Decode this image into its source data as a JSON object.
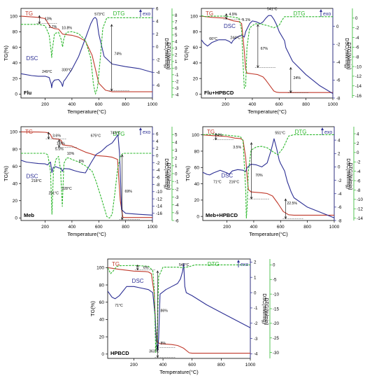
{
  "colors": {
    "tg": "#c0392b",
    "dtg": "#2eb82e",
    "dsc": "#2c2f94",
    "axis": "#000000",
    "annot": "#000000"
  },
  "labels": {
    "xlabel": "Temperature(°C)",
    "ylabel_tg": "TG(%)",
    "ylabel_dsc": "DSC(mW/mg)",
    "ylabel_dtg": "DTG(%/min)",
    "legend_tg": "TG",
    "legend_dtg": "DTG",
    "legend_dsc": "DSC",
    "legend_exo": "exo"
  },
  "chart_data": [
    {
      "type": "line",
      "name": "Flu",
      "xlim": [
        20,
        1000
      ],
      "xticks": [
        200,
        400,
        600,
        800,
        1000
      ],
      "tg": {
        "ylim": [
          -5,
          110
        ],
        "ticks": [
          0,
          20,
          40,
          60,
          80,
          100
        ],
        "x": [
          20,
          150,
          200,
          240,
          270,
          300,
          330,
          350,
          400,
          450,
          500,
          550,
          600,
          650,
          700,
          1000
        ],
        "y": [
          100,
          98.5,
          97,
          86,
          84,
          83.5,
          77,
          76.5,
          75.5,
          73,
          68,
          50,
          14,
          5,
          3,
          3
        ]
      },
      "dsc": {
        "ylim": [
          -8,
          6
        ],
        "ticks": [
          -6,
          -4,
          -2,
          0,
          2,
          4,
          6
        ],
        "x": [
          20,
          100,
          150,
          200,
          230,
          245,
          249,
          255,
          270,
          300,
          320,
          330,
          338,
          350,
          400,
          450,
          500,
          540,
          560,
          573,
          585,
          600,
          640,
          700,
          800,
          900,
          1000
        ],
        "y": [
          -4.2,
          -4.5,
          -4.6,
          -4.6,
          -4.8,
          -5.8,
          -6.4,
          -5.6,
          -5.2,
          -5.1,
          -5.6,
          -6.2,
          -5.4,
          -5.1,
          -3.5,
          -1.5,
          1.3,
          3.6,
          4.4,
          4.6,
          4.3,
          2,
          -1.5,
          -2.7,
          -3.1,
          -3.4,
          -4
        ]
      },
      "dtg": {
        "ylim": [
          -4.5,
          9
        ],
        "ticks": [
          -4,
          -3,
          -2,
          -1,
          0,
          1,
          2,
          3,
          4,
          5,
          6,
          7,
          8
        ],
        "x": [
          20,
          150,
          200,
          230,
          245,
          249,
          255,
          270,
          300,
          320,
          330,
          340,
          360,
          400,
          450,
          500,
          540,
          560,
          575,
          590,
          610,
          630,
          660,
          1000
        ],
        "y": [
          6.6,
          6.6,
          6.4,
          5,
          2.5,
          1.6,
          3,
          5.2,
          5.4,
          4.3,
          3.2,
          4.5,
          5.4,
          5.5,
          5.2,
          4.2,
          1.5,
          -2.4,
          -3.9,
          -3,
          1.2,
          6,
          7.6,
          7.6
        ]
      },
      "labels": [
        "249°C",
        "330°C",
        "573°C",
        "13%",
        "2.7%",
        "10.8%",
        "74%"
      ]
    },
    {
      "type": "line",
      "name": "Flu+HPBCD",
      "xlim": [
        20,
        1000
      ],
      "xticks": [
        200,
        400,
        600,
        800,
        1000
      ],
      "tg": {
        "ylim": [
          -5,
          110
        ],
        "ticks": [
          0,
          20,
          40,
          60,
          80,
          100
        ],
        "x": [
          20,
          100,
          200,
          240,
          260,
          300,
          320,
          340,
          350,
          360,
          380,
          400,
          440,
          480,
          500,
          560,
          580,
          600,
          1000
        ],
        "y": [
          100,
          98.5,
          97.5,
          95,
          94,
          93,
          90.5,
          55,
          32,
          27,
          26.5,
          26,
          25,
          22,
          18,
          4,
          2.5,
          2,
          2
        ]
      },
      "dsc": {
        "ylim": [
          -8,
          2
        ],
        "ticks": [
          -8,
          -6,
          -4,
          -2,
          0
        ],
        "x": [
          20,
          40,
          66,
          100,
          150,
          200,
          230,
          244,
          255,
          270,
          300,
          320,
          330,
          340,
          350,
          380,
          400,
          430,
          460,
          480,
          500,
          520,
          541,
          560,
          580,
          600,
          640,
          650,
          700,
          800,
          900,
          1000
        ],
        "y": [
          -1.5,
          -1.9,
          -2.2,
          -1.8,
          -1.5,
          -1.5,
          -1.7,
          -1.9,
          -1.6,
          -1.4,
          -1.1,
          -1.0,
          -1.1,
          -1.2,
          -0.6,
          0.3,
          0.6,
          0.5,
          0.3,
          0.5,
          0.9,
          1.2,
          1.2,
          0.8,
          0.2,
          -0.6,
          -1.6,
          -2.4,
          -3.9,
          -5.4,
          -6.6,
          -7.5
        ]
      },
      "dtg": {
        "ylim": [
          -16.5,
          2
        ],
        "ticks": [
          -16,
          -14,
          -12,
          -10,
          -8,
          -6,
          -4,
          -2,
          0
        ],
        "x": [
          20,
          50,
          100,
          200,
          260,
          300,
          320,
          330,
          340,
          350,
          360,
          380,
          420,
          460,
          520,
          560,
          600,
          620,
          640,
          1000
        ],
        "y": [
          0.5,
          0.3,
          0.4,
          0.4,
          0.2,
          0,
          -2.5,
          -9,
          -14.5,
          -14,
          -6,
          -2,
          -1.2,
          -1.2,
          -1.6,
          -2.0,
          -1.5,
          -0.5,
          0.3,
          0.3
        ]
      },
      "labels": [
        "66°C",
        "244°C",
        "541°C",
        "4.9%",
        "5.1%",
        "67%",
        "24%"
      ]
    },
    {
      "type": "line",
      "name": "Meb",
      "xlim": [
        20,
        1000
      ],
      "xticks": [
        200,
        400,
        600,
        800,
        1000
      ],
      "tg": {
        "ylim": [
          -3,
          106
        ],
        "ticks": [
          0,
          20,
          40,
          60,
          80,
          100
        ],
        "x": [
          20,
          150,
          200,
          220,
          240,
          250,
          260,
          300,
          320,
          330,
          350,
          400,
          450,
          500,
          550,
          580,
          620,
          660,
          700,
          740,
          760,
          780,
          1000
        ],
        "y": [
          100,
          99.8,
          99.5,
          99,
          97,
          93.5,
          92,
          91.5,
          90,
          85,
          84.5,
          83.5,
          80,
          76.5,
          74,
          72.5,
          72,
          71.5,
          70.5,
          68,
          20,
          0.5,
          0.5
        ]
      },
      "dsc": {
        "ylim": [
          -18,
          8
        ],
        "ticks": [
          -16,
          -14,
          -12,
          -10,
          -8,
          -6,
          -4,
          -2,
          0,
          2,
          4,
          6
        ],
        "x": [
          20,
          60,
          100,
          150,
          200,
          218,
          230,
          240,
          251,
          260,
          280,
          300,
          320,
          328,
          340,
          380,
          420,
          460,
          500,
          540,
          580,
          620,
          660,
          700,
          720,
          743,
          755,
          770,
          800,
          900,
          1000
        ],
        "y": [
          -1.3,
          -1.8,
          -2.0,
          -2.2,
          -2.3,
          -2.6,
          -2.1,
          -1.8,
          -4.7,
          -3.3,
          -3.1,
          -3.4,
          -3.5,
          -4.4,
          -3.6,
          -3.7,
          -4.2,
          -4.6,
          -4.8,
          -2.1,
          0.3,
          1.2,
          2.6,
          3.5,
          4.5,
          5.8,
          0.5,
          -15,
          -16,
          -16.3,
          -16.5
        ]
      },
      "dtg": {
        "ylim": [
          -6,
          6
        ],
        "ticks": [
          -6,
          -5,
          -4,
          -3,
          -2,
          -1,
          0,
          1,
          2,
          3,
          4,
          5
        ],
        "x": [
          20,
          100,
          200,
          220,
          240,
          251,
          262,
          280,
          300,
          315,
          328,
          340,
          360,
          380,
          400,
          450,
          500,
          550,
          580,
          620,
          660,
          680,
          700,
          720,
          740,
          760,
          780,
          1000
        ],
        "y": [
          2.6,
          2.6,
          2.6,
          2.4,
          0.3,
          -5.2,
          0.2,
          1.8,
          2.2,
          0.5,
          -4.2,
          1.3,
          2.0,
          2.0,
          1.8,
          1.5,
          1.0,
          0.3,
          -1.0,
          -3.2,
          -5.5,
          -5.7,
          -5.2,
          -2.5,
          0.5,
          2.2,
          2.6,
          2.6
        ]
      },
      "labels": [
        "218°C",
        "251°C",
        "328°C",
        "675°C",
        "743°C",
        "3.6%",
        "1.8%",
        "5.5%",
        "10%",
        "8%",
        "69%"
      ]
    },
    {
      "type": "line",
      "name": "Meb+HPBCD",
      "xlim": [
        20,
        1000
      ],
      "xticks": [
        200,
        400,
        600,
        800,
        1000
      ],
      "tg": {
        "ylim": [
          -5,
          110
        ],
        "ticks": [
          0,
          20,
          40,
          60,
          80,
          100
        ],
        "x": [
          20,
          100,
          200,
          260,
          300,
          320,
          340,
          350,
          360,
          380,
          420,
          460,
          500,
          540,
          580,
          620,
          660,
          700,
          1000
        ],
        "y": [
          100,
          99,
          98,
          96,
          95.5,
          93.5,
          72,
          50,
          33,
          30,
          29.5,
          29,
          28,
          25,
          16,
          6,
          2,
          1.5,
          1.5
        ]
      },
      "dsc": {
        "ylim": [
          -8,
          6
        ],
        "ticks": [
          -8,
          -6,
          -4,
          -2,
          0,
          2,
          4
        ],
        "x": [
          20,
          50,
          71,
          100,
          150,
          200,
          216,
          240,
          280,
          320,
          340,
          350,
          380,
          420,
          460,
          500,
          530,
          551,
          570,
          590,
          600,
          630,
          650,
          680,
          700,
          800,
          900,
          1000
        ],
        "y": [
          -0.8,
          -1.1,
          -1.2,
          -0.9,
          -0.5,
          -0.9,
          -1.1,
          -0.6,
          -0.4,
          -0.5,
          -0.7,
          -0.1,
          0.4,
          0.3,
          0.0,
          0.6,
          2.5,
          4.2,
          2.8,
          1.0,
          0.5,
          -0.6,
          -2.2,
          -3.8,
          -4.6,
          -6.0,
          -6.8,
          -7.6
        ]
      },
      "dtg": {
        "ylim": [
          -14.5,
          5.5
        ],
        "ticks": [
          -14,
          -12,
          -10,
          -8,
          -6,
          -4,
          -2,
          0,
          2,
          4
        ],
        "x": [
          20,
          100,
          200,
          260,
          300,
          320,
          340,
          345,
          350,
          360,
          380,
          420,
          460,
          500,
          540,
          580,
          620,
          660,
          700,
          1000
        ],
        "y": [
          3.8,
          3.9,
          3.7,
          3.5,
          3.4,
          2.5,
          -8,
          -14,
          -12,
          -4,
          0.5,
          1.2,
          1.3,
          1.0,
          0.2,
          -0.5,
          1.0,
          3.5,
          3.8,
          3.8
        ]
      },
      "labels": [
        "71°C",
        "216°C",
        "551°C",
        "4%",
        "3.5%",
        "70%",
        "22.5%"
      ]
    },
    {
      "type": "line",
      "name": "HPBCD",
      "xlim": [
        20,
        1000
      ],
      "xticks": [
        200,
        400,
        600,
        800,
        1000
      ],
      "tg": {
        "ylim": [
          -5,
          110
        ],
        "ticks": [
          0,
          20,
          40,
          60,
          80,
          100
        ],
        "x": [
          20,
          100,
          200,
          280,
          300,
          320,
          340,
          350,
          360,
          380,
          420,
          460,
          500,
          540,
          580,
          600,
          1000
        ],
        "y": [
          100,
          98,
          96,
          95.5,
          95,
          93,
          70,
          30,
          14,
          12,
          11.5,
          11,
          10,
          7,
          1.5,
          1,
          1
        ]
      },
      "dsc": {
        "ylim": [
          -4.3,
          2.2
        ],
        "ticks": [
          -4,
          -3,
          -2,
          -1,
          0,
          1,
          2
        ],
        "x": [
          20,
          50,
          71,
          100,
          150,
          200,
          250,
          300,
          330,
          345,
          355,
          363,
          370,
          380,
          420,
          460,
          500,
          520,
          535,
          542,
          550,
          560,
          600,
          700,
          800,
          900,
          1000
        ],
        "y": [
          0.1,
          -0.3,
          -0.4,
          -0.2,
          0.4,
          0.4,
          0.3,
          0.2,
          0.0,
          -1.5,
          -3.3,
          -3.8,
          -3.0,
          -0.1,
          0.2,
          0.4,
          0.6,
          0.9,
          1.4,
          1.9,
          0.4,
          0.0,
          -0.2,
          -0.8,
          -1.3,
          -1.8,
          -2.3
        ]
      },
      "dtg": {
        "ylim": [
          -32,
          2
        ],
        "ticks": [
          -30,
          -25,
          -20,
          -15,
          -10,
          -5,
          0
        ],
        "x": [
          20,
          40,
          60,
          80,
          100,
          200,
          300,
          330,
          340,
          350,
          360,
          370,
          400,
          500,
          540,
          580,
          620,
          1000
        ],
        "y": [
          -1,
          -3,
          -2,
          -0.6,
          -0.3,
          -0.2,
          -0.5,
          -2,
          -8,
          -30,
          -24,
          -4,
          -0.8,
          -0.8,
          -1,
          -0.6,
          0,
          0
        ]
      },
      "labels": [
        "71°C",
        "363°C",
        "542°C",
        "6%",
        "86%",
        "8%"
      ]
    }
  ]
}
